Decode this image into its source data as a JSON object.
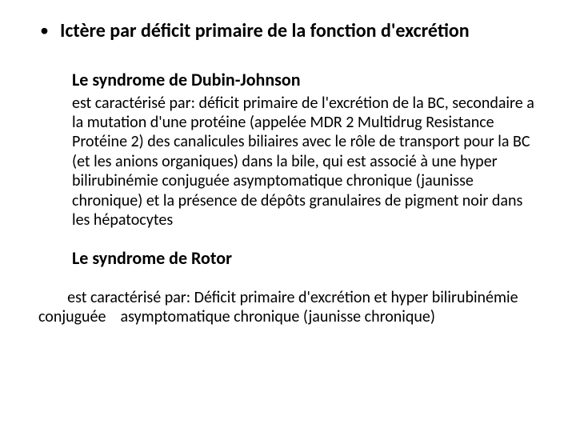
{
  "bullet_glyph": "•",
  "main_title": "Ictère par déficit primaire de la fonction d'excrétion",
  "dubin": {
    "title": "Le syndrome de Dubin-Johnson",
    "body": "est caractérisé par: déficit primaire de l'excrétion de la BC, secondaire a la mutation d'une protéine (appelée  MDR 2 Multidrug Resistance Protéine 2) des canalicules biliaires avec le rôle de transport pour la BC (et les anions organiques) dans la bile, qui est associé à une hyper bilirubinémie conjuguée asymptomatique chronique (jaunisse chronique) et  la présence de dépôts granulaires de pigment noir dans les hépatocytes"
  },
  "rotor": {
    "title": "Le syndrome de Rotor",
    "body": "        est caractérisé par: Déficit primaire d'excrétion et hyper bilirubinémie conjuguée    asymptomatique chronique (jaunisse chronique)"
  },
  "colors": {
    "text": "#000000",
    "background": "#ffffff"
  },
  "typography": {
    "title_fontsize_pt": 18,
    "subtitle_fontsize_pt": 17,
    "body_fontsize_pt": 15,
    "font_family": "Calibri"
  }
}
